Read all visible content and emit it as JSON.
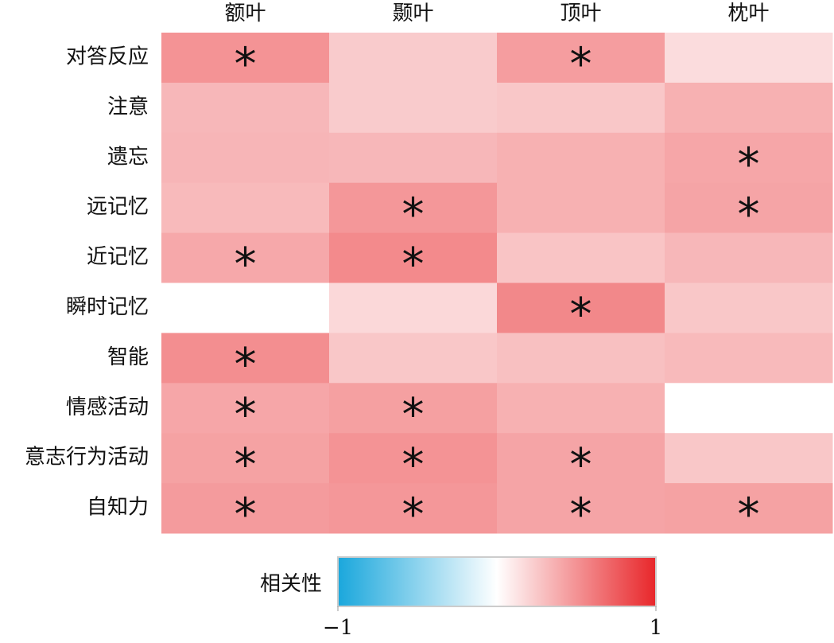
{
  "chart_data": {
    "type": "heatmap",
    "x_categories": [
      "额叶",
      "颞叶",
      "顶叶",
      "枕叶"
    ],
    "y_categories": [
      "对答反应",
      "注意",
      "遗忘",
      "远记忆",
      "近记忆",
      "瞬时记忆",
      "智能",
      "情感活动",
      "意志行为活动",
      "自知力"
    ],
    "values": [
      [
        0.5,
        0.24,
        0.45,
        0.16
      ],
      [
        0.33,
        0.24,
        0.26,
        0.36
      ],
      [
        0.34,
        0.33,
        0.36,
        0.41
      ],
      [
        0.32,
        0.48,
        0.36,
        0.42
      ],
      [
        0.4,
        0.54,
        0.27,
        0.33
      ],
      [
        0.0,
        0.18,
        0.55,
        0.26
      ],
      [
        0.52,
        0.26,
        0.29,
        0.32
      ],
      [
        0.41,
        0.44,
        0.36,
        0.0
      ],
      [
        0.43,
        0.5,
        0.42,
        0.26
      ],
      [
        0.46,
        0.48,
        0.42,
        0.43
      ]
    ],
    "cell_labels": [
      [
        "*",
        null,
        "*",
        null
      ],
      [
        null,
        null,
        null,
        null
      ],
      [
        null,
        null,
        null,
        "*"
      ],
      [
        null,
        "*",
        null,
        "*"
      ],
      [
        "*",
        "*",
        null,
        null
      ],
      [
        null,
        null,
        "*",
        null
      ],
      [
        "*",
        null,
        null,
        null
      ],
      [
        "*",
        "*",
        null,
        null
      ],
      [
        "*",
        "*",
        "*",
        null
      ],
      [
        "*",
        "*",
        "*",
        "*"
      ]
    ],
    "colorbar_title": "相关性",
    "zlim": [
      -1,
      1
    ],
    "zticks": [
      {
        "value": -1,
        "label": "−1"
      },
      1
    ],
    "colormap": [
      "#1aa7dc",
      "#ffffff",
      "#e8262a"
    ]
  }
}
